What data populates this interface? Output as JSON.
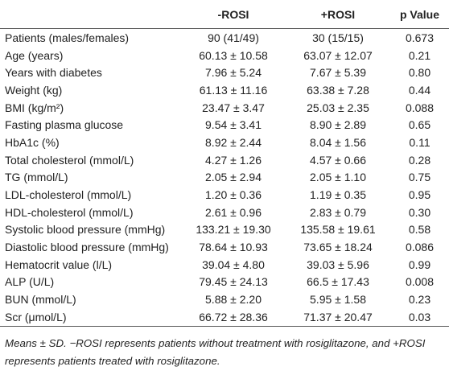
{
  "table": {
    "header": [
      "-ROSI",
      "+ROSI",
      "p Value"
    ],
    "rows": [
      [
        "Patients (males/females)",
        "90 (41/49)",
        "30 (15/15)",
        "0.673"
      ],
      [
        "Age (years)",
        "60.13 ± 10.58",
        "63.07 ± 12.07",
        "0.21"
      ],
      [
        "Years with diabetes",
        "7.96 ± 5.24",
        "7.67 ± 5.39",
        "0.80"
      ],
      [
        "Weight (kg)",
        "61.13 ± 11.16",
        "63.38 ± 7.28",
        "0.44"
      ],
      [
        "BMI (kg/m²)",
        "23.47 ± 3.47",
        "25.03 ± 2.35",
        "0.088"
      ],
      [
        "Fasting plasma glucose",
        "9.54 ± 3.41",
        "8.90 ± 2.89",
        "0.65"
      ],
      [
        "HbA1c (%)",
        "8.92 ± 2.44",
        "8.04 ± 1.56",
        "0.11"
      ],
      [
        "Total cholesterol (mmol/L)",
        "4.27 ± 1.26",
        "4.57 ± 0.66",
        "0.28"
      ],
      [
        "TG (mmol/L)",
        "2.05 ± 2.94",
        "2.05 ± 1.10",
        "0.75"
      ],
      [
        "LDL-cholesterol (mmol/L)",
        "1.20 ± 0.36",
        "1.19 ± 0.35",
        "0.95"
      ],
      [
        "HDL-cholesterol (mmol/L)",
        "2.61 ± 0.96",
        "2.83 ± 0.79",
        "0.30"
      ],
      [
        "Systolic blood pressure (mmHg)",
        "133.21 ± 19.30",
        "135.58 ± 19.61",
        "0.58"
      ],
      [
        "Diastolic blood pressure (mmHg)",
        "78.64 ± 10.93",
        "73.65 ± 18.24",
        "0.086"
      ],
      [
        "Hematocrit value (l/L)",
        "39.04 ± 4.80",
        "39.03 ± 5.96",
        "0.99"
      ],
      [
        "ALP (U/L)",
        "79.45 ± 24.13",
        "66.5 ± 17.43",
        "0.008"
      ],
      [
        "BUN (mmol/L)",
        "5.88 ± 2.20",
        "5.95 ± 1.58",
        "0.23"
      ],
      [
        "Scr (μmol/L)",
        "66.72 ± 28.36",
        "71.37 ± 20.47",
        "0.03"
      ]
    ],
    "footnote": "Means ± SD. −ROSI represents patients without treatment with rosiglitazone, and +ROSI represents patients treated with rosiglitazone."
  }
}
